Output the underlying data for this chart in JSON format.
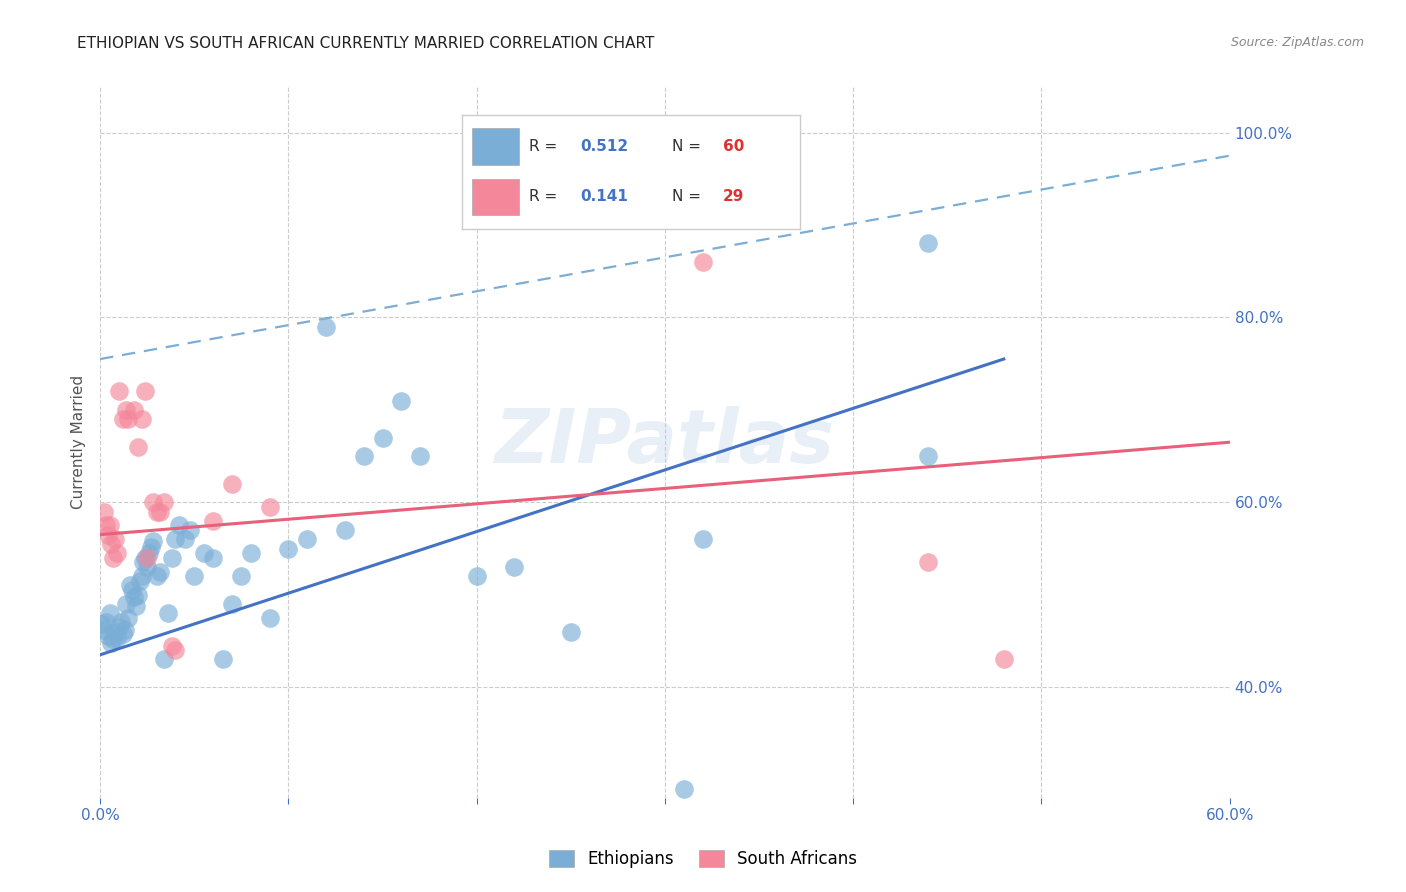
{
  "title": "ETHIOPIAN VS SOUTH AFRICAN CURRENTLY MARRIED CORRELATION CHART",
  "source": "Source: ZipAtlas.com",
  "ylabel": "Currently Married",
  "xlim": [
    0.0,
    0.6
  ],
  "ylim": [
    0.28,
    1.05
  ],
  "yticks": [
    0.4,
    0.6,
    0.8,
    1.0
  ],
  "ytick_labels": [
    "40.0%",
    "60.0%",
    "80.0%",
    "100.0%"
  ],
  "xticks": [
    0.0,
    0.1,
    0.2,
    0.3,
    0.4,
    0.5,
    0.6
  ],
  "xtick_labels": [
    "0.0%",
    "",
    "",
    "",
    "",
    "",
    "60.0%"
  ],
  "blue_R": "0.512",
  "blue_N": "60",
  "pink_R": "0.141",
  "pink_N": "29",
  "blue_color": "#7aaed6",
  "pink_color": "#f4879a",
  "axis_color": "#4472c4",
  "background_color": "#ffffff",
  "watermark_text": "ZIPatlas",
  "blue_scatter": [
    [
      0.001,
      0.468
    ],
    [
      0.002,
      0.462
    ],
    [
      0.003,
      0.471
    ],
    [
      0.004,
      0.455
    ],
    [
      0.005,
      0.48
    ],
    [
      0.006,
      0.448
    ],
    [
      0.007,
      0.452
    ],
    [
      0.008,
      0.46
    ],
    [
      0.009,
      0.453
    ],
    [
      0.01,
      0.465
    ],
    [
      0.011,
      0.47
    ],
    [
      0.012,
      0.458
    ],
    [
      0.013,
      0.462
    ],
    [
      0.014,
      0.49
    ],
    [
      0.015,
      0.475
    ],
    [
      0.016,
      0.51
    ],
    [
      0.017,
      0.505
    ],
    [
      0.018,
      0.498
    ],
    [
      0.019,
      0.488
    ],
    [
      0.02,
      0.5
    ],
    [
      0.021,
      0.515
    ],
    [
      0.022,
      0.52
    ],
    [
      0.023,
      0.535
    ],
    [
      0.024,
      0.54
    ],
    [
      0.025,
      0.53
    ],
    [
      0.026,
      0.545
    ],
    [
      0.027,
      0.552
    ],
    [
      0.028,
      0.558
    ],
    [
      0.03,
      0.52
    ],
    [
      0.032,
      0.525
    ],
    [
      0.034,
      0.43
    ],
    [
      0.036,
      0.48
    ],
    [
      0.038,
      0.54
    ],
    [
      0.04,
      0.56
    ],
    [
      0.042,
      0.575
    ],
    [
      0.045,
      0.56
    ],
    [
      0.048,
      0.57
    ],
    [
      0.05,
      0.52
    ],
    [
      0.055,
      0.545
    ],
    [
      0.06,
      0.54
    ],
    [
      0.065,
      0.43
    ],
    [
      0.07,
      0.49
    ],
    [
      0.075,
      0.52
    ],
    [
      0.08,
      0.545
    ],
    [
      0.09,
      0.475
    ],
    [
      0.1,
      0.55
    ],
    [
      0.11,
      0.56
    ],
    [
      0.12,
      0.79
    ],
    [
      0.13,
      0.57
    ],
    [
      0.14,
      0.65
    ],
    [
      0.15,
      0.67
    ],
    [
      0.16,
      0.71
    ],
    [
      0.17,
      0.65
    ],
    [
      0.2,
      0.52
    ],
    [
      0.22,
      0.53
    ],
    [
      0.25,
      0.46
    ],
    [
      0.31,
      0.29
    ],
    [
      0.32,
      0.56
    ],
    [
      0.44,
      0.65
    ],
    [
      0.44,
      0.88
    ]
  ],
  "pink_scatter": [
    [
      0.002,
      0.59
    ],
    [
      0.003,
      0.575
    ],
    [
      0.004,
      0.565
    ],
    [
      0.005,
      0.575
    ],
    [
      0.006,
      0.555
    ],
    [
      0.007,
      0.54
    ],
    [
      0.008,
      0.56
    ],
    [
      0.009,
      0.545
    ],
    [
      0.01,
      0.72
    ],
    [
      0.012,
      0.69
    ],
    [
      0.014,
      0.7
    ],
    [
      0.015,
      0.69
    ],
    [
      0.018,
      0.7
    ],
    [
      0.02,
      0.66
    ],
    [
      0.022,
      0.69
    ],
    [
      0.024,
      0.72
    ],
    [
      0.025,
      0.54
    ],
    [
      0.028,
      0.6
    ],
    [
      0.03,
      0.59
    ],
    [
      0.032,
      0.59
    ],
    [
      0.034,
      0.6
    ],
    [
      0.038,
      0.445
    ],
    [
      0.04,
      0.44
    ],
    [
      0.06,
      0.58
    ],
    [
      0.07,
      0.62
    ],
    [
      0.09,
      0.595
    ],
    [
      0.32,
      0.86
    ],
    [
      0.44,
      0.535
    ],
    [
      0.48,
      0.43
    ]
  ],
  "blue_line": [
    [
      0.0,
      0.435
    ],
    [
      0.48,
      0.755
    ]
  ],
  "pink_line": [
    [
      0.0,
      0.565
    ],
    [
      0.6,
      0.665
    ]
  ],
  "dashed_line": [
    [
      0.0,
      0.755
    ],
    [
      0.6,
      0.975
    ]
  ],
  "title_fontsize": 11,
  "source_fontsize": 9,
  "legend_fontsize": 11,
  "axis_label_fontsize": 11,
  "tick_fontsize": 11
}
